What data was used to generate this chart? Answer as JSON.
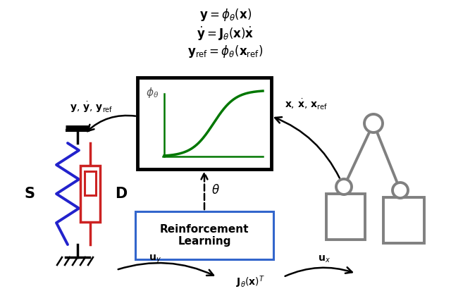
{
  "title_eq1": "$\\mathbf{y} = \\phi_\\theta(\\mathbf{x})$",
  "title_eq2": "$\\dot{\\mathbf{y}} = \\mathbf{J}_\\theta(\\mathbf{x})\\dot{\\mathbf{x}}$",
  "title_eq3": "$\\mathbf{y}_{\\mathrm{ref}} = \\phi_\\theta(\\mathbf{x}_{\\mathrm{ref}})$",
  "label_left": "$\\mathbf{y},\\, \\dot{\\mathbf{y}},\\, \\mathbf{y}_{\\mathrm{ref}}$",
  "label_right": "$\\mathbf{x},\\, \\dot{\\mathbf{x}},\\, \\mathbf{x}_{\\mathrm{ref}}$",
  "label_theta": "$\\theta$",
  "label_rl": "Reinforcement\nLearning",
  "label_phi": "$\\phi_\\theta$",
  "label_uy": "$\\mathbf{u}_y$",
  "label_ux": "$\\mathbf{u}_x$",
  "label_jac": "$\\mathbf{J}_\\theta(\\mathbf{x})^T$",
  "label_S": "$\\mathbf{S}$",
  "label_D": "$\\mathbf{D}$",
  "bg_color": "#ffffff",
  "robot_color": "#808080",
  "spring_color": "#2222cc",
  "damper_color": "#cc2222",
  "black": "#000000",
  "green": "#007700",
  "blue_box": "#3366cc"
}
